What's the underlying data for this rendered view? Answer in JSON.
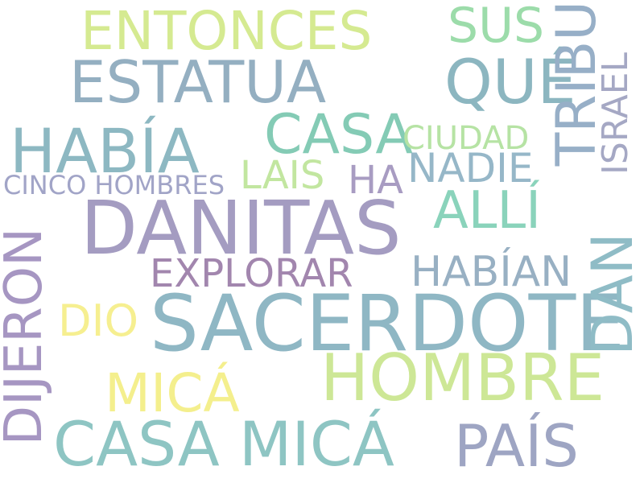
{
  "words": [
    {
      "text": "DANITAS",
      "color": "#a49cc1"
    },
    {
      "text": "SACERDOTE",
      "color": "#8fb7c4"
    },
    {
      "text": "CASA MICÁ",
      "color": "#8ec5c3"
    },
    {
      "text": "HOMBRE",
      "color": "#cde796"
    },
    {
      "text": "ESTATUA",
      "color": "#94afc1"
    },
    {
      "text": "HABÍA",
      "color": "#8db8c2"
    },
    {
      "text": "QUÉ",
      "color": "#8cb6c0"
    },
    {
      "text": "ENTONCES",
      "color": "#d5ea91"
    },
    {
      "text": "CASA",
      "color": "#84cbb5"
    },
    {
      "text": "DIJERON",
      "color": "#a696c2"
    },
    {
      "text": "TRIBU",
      "color": "#97afc7"
    },
    {
      "text": "DAN",
      "color": "#8fbcc6"
    },
    {
      "text": "PAÍS",
      "color": "#9ea5c3"
    },
    {
      "text": "MICÁ",
      "color": "#f4ef8d"
    },
    {
      "text": "SUS",
      "color": "#9cdcaa"
    },
    {
      "text": "ALLÍ",
      "color": "#8ad3bb"
    },
    {
      "text": "HABÍAN",
      "color": "#98b0c3"
    },
    {
      "text": "EXPLORAR",
      "color": "#a286ae"
    },
    {
      "text": "ISRAEL",
      "color": "#a5a8c4"
    },
    {
      "text": "NADIE",
      "color": "#96b7c8"
    },
    {
      "text": "LAIS",
      "color": "#c2e6a0"
    },
    {
      "text": "HA",
      "color": "#a89cc2"
    },
    {
      "text": "CIUDAD",
      "color": "#b6e3a4"
    },
    {
      "text": "DIO",
      "color": "#f6ef90"
    },
    {
      "text": "CINCO HOMBRES",
      "color": "#a1a4c7"
    }
  ]
}
